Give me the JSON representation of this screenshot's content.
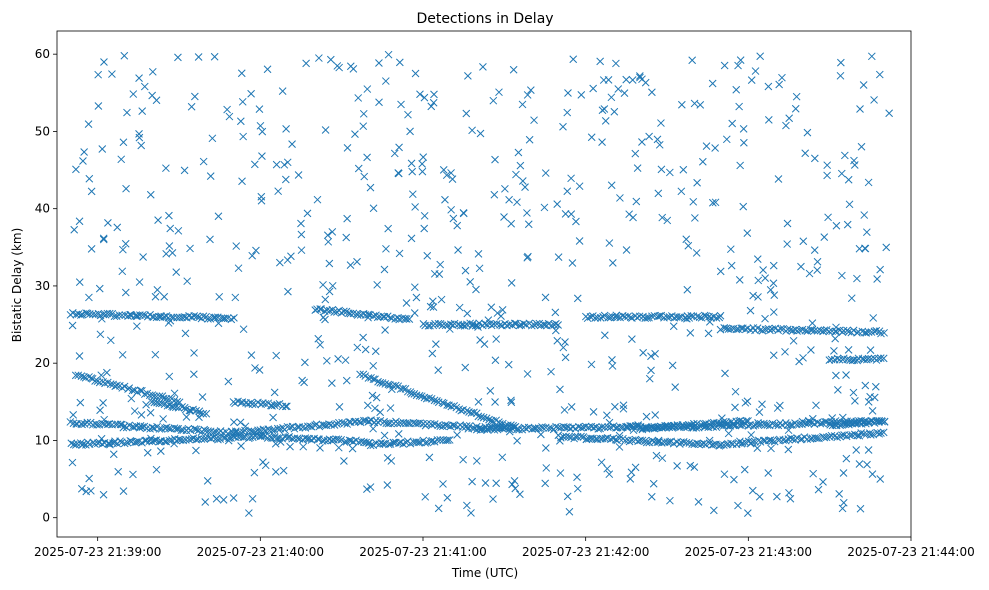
{
  "chart_data": {
    "type": "scatter",
    "title": "Detections in Delay",
    "xlabel": "Time (UTC)",
    "ylabel": "Bistatic Delay (km)",
    "marker": "x",
    "color": "#1f77b4",
    "grid": false,
    "x_tick_labels": [
      "2025-07-23 21:39:00",
      "2025-07-23 21:40:00",
      "2025-07-23 21:41:00",
      "2025-07-23 21:42:00",
      "2025-07-23 21:43:00",
      "2025-07-23 21:44:00"
    ],
    "y_ticks": [
      0,
      10,
      20,
      30,
      40,
      50,
      60
    ],
    "xlim": [
      "2025-07-23 21:38:45",
      "2025-07-23 21:44:00"
    ],
    "ylim": [
      -2.5,
      63
    ],
    "tracks": [
      {
        "from": [
          "2025-07-23 21:38:50",
          26.4
        ],
        "to": [
          "2025-07-23 21:39:50",
          25.8
        ]
      },
      {
        "from": [
          "2025-07-23 21:38:52",
          18.5
        ],
        "to": [
          "2025-07-23 21:39:30",
          15.0
        ]
      },
      {
        "from": [
          "2025-07-23 21:38:50",
          12.3
        ],
        "to": [
          "2025-07-23 21:39:50",
          11.0
        ]
      },
      {
        "from": [
          "2025-07-23 21:38:50",
          9.5
        ],
        "to": [
          "2025-07-23 21:40:00",
          10.5
        ]
      },
      {
        "from": [
          "2025-07-23 21:39:20",
          15.0
        ],
        "to": [
          "2025-07-23 21:39:40",
          13.5
        ]
      },
      {
        "from": [
          "2025-07-23 21:39:50",
          11.0
        ],
        "to": [
          "2025-07-23 21:40:40",
          12.5
        ]
      },
      {
        "from": [
          "2025-07-23 21:39:50",
          15.0
        ],
        "to": [
          "2025-07-23 21:40:10",
          14.5
        ]
      },
      {
        "from": [
          "2025-07-23 21:40:00",
          10.5
        ],
        "to": [
          "2025-07-23 21:40:40",
          9.8
        ]
      },
      {
        "from": [
          "2025-07-23 21:40:20",
          27.0
        ],
        "to": [
          "2025-07-23 21:40:55",
          25.6
        ]
      },
      {
        "from": [
          "2025-07-23 21:40:37",
          18.5
        ],
        "to": [
          "2025-07-23 21:41:35",
          11.5
        ]
      },
      {
        "from": [
          "2025-07-23 21:40:40",
          12.5
        ],
        "to": [
          "2025-07-23 21:41:30",
          11.5
        ]
      },
      {
        "from": [
          "2025-07-23 21:40:40",
          9.5
        ],
        "to": [
          "2025-07-23 21:41:10",
          10.0
        ]
      },
      {
        "from": [
          "2025-07-23 21:41:00",
          25.0
        ],
        "to": [
          "2025-07-23 21:41:50",
          25.0
        ]
      },
      {
        "from": [
          "2025-07-23 21:41:20",
          11.5
        ],
        "to": [
          "2025-07-23 21:42:40",
          11.8
        ]
      },
      {
        "from": [
          "2025-07-23 21:41:50",
          10.5
        ],
        "to": [
          "2025-07-23 21:42:50",
          9.4
        ]
      },
      {
        "from": [
          "2025-07-23 21:42:00",
          26.0
        ],
        "to": [
          "2025-07-23 21:42:50",
          26.0
        ]
      },
      {
        "from": [
          "2025-07-23 21:42:20",
          11.5
        ],
        "to": [
          "2025-07-23 21:43:00",
          12.5
        ]
      },
      {
        "from": [
          "2025-07-23 21:42:40",
          11.8
        ],
        "to": [
          "2025-07-23 21:43:50",
          12.5
        ]
      },
      {
        "from": [
          "2025-07-23 21:42:50",
          9.5
        ],
        "to": [
          "2025-07-23 21:43:50",
          11.0
        ]
      },
      {
        "from": [
          "2025-07-23 21:42:50",
          24.5
        ],
        "to": [
          "2025-07-23 21:43:50",
          24.0
        ]
      },
      {
        "from": [
          "2025-07-23 21:43:30",
          12.0
        ],
        "to": [
          "2025-07-23 21:43:50",
          12.5
        ]
      },
      {
        "from": [
          "2025-07-23 21:43:30",
          20.5
        ],
        "to": [
          "2025-07-23 21:43:50",
          20.5
        ]
      }
    ],
    "noise": {
      "from": "2025-07-23 21:38:50",
      "to": "2025-07-23 21:43:52",
      "ymin": 0.5,
      "ymax": 60
    }
  }
}
